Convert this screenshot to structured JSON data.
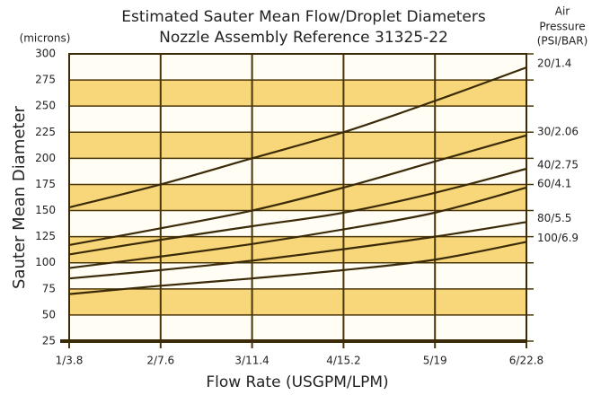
{
  "chart_data": {
    "type": "line",
    "title": "Estimated Sauter Mean Flow/Droplet Diameters",
    "subtitle": "Nozzle Assembly Reference 31325-22",
    "y_unit": "(microns)",
    "y_label": "Sauter Mean Diameter",
    "x_label": "Flow Rate (USGPM/LPM)",
    "legend_title": [
      "Air",
      "Pressure",
      "(PSI/BAR)"
    ],
    "x": [
      1,
      2,
      3,
      4,
      5,
      6
    ],
    "xlim": [
      1,
      6
    ],
    "xticks": [
      {
        "value": 1,
        "label": "1/3.8"
      },
      {
        "value": 2,
        "label": "2/7.6"
      },
      {
        "value": 3,
        "label": "3/11.4"
      },
      {
        "value": 4,
        "label": "4/15.2"
      },
      {
        "value": 5,
        "label": "5/19"
      },
      {
        "value": 6,
        "label": "6/22.8"
      }
    ],
    "ylim": [
      25,
      300
    ],
    "yticks": [
      25,
      50,
      75,
      100,
      125,
      150,
      175,
      200,
      225,
      250,
      275,
      300
    ],
    "grid": true,
    "series": [
      {
        "name": "20/1.4",
        "color": "#3a2a08",
        "values": [
          153,
          175,
          200,
          225,
          255,
          287
        ]
      },
      {
        "name": "30/2.06",
        "color": "#3a2a08",
        "values": [
          117,
          133,
          150,
          172,
          197,
          222
        ]
      },
      {
        "name": "40/2.75",
        "color": "#3a2a08",
        "values": [
          108,
          122,
          135,
          148,
          167,
          190
        ]
      },
      {
        "name": "60/4.1",
        "color": "#3a2a08",
        "values": [
          95,
          106,
          118,
          132,
          148,
          172
        ]
      },
      {
        "name": "80/5.5",
        "color": "#3a2a08",
        "values": [
          85,
          93,
          102,
          113,
          125,
          139
        ]
      },
      {
        "name": "100/6.9",
        "color": "#3a2a08",
        "values": [
          70,
          78,
          85,
          93,
          103,
          120
        ]
      }
    ]
  }
}
